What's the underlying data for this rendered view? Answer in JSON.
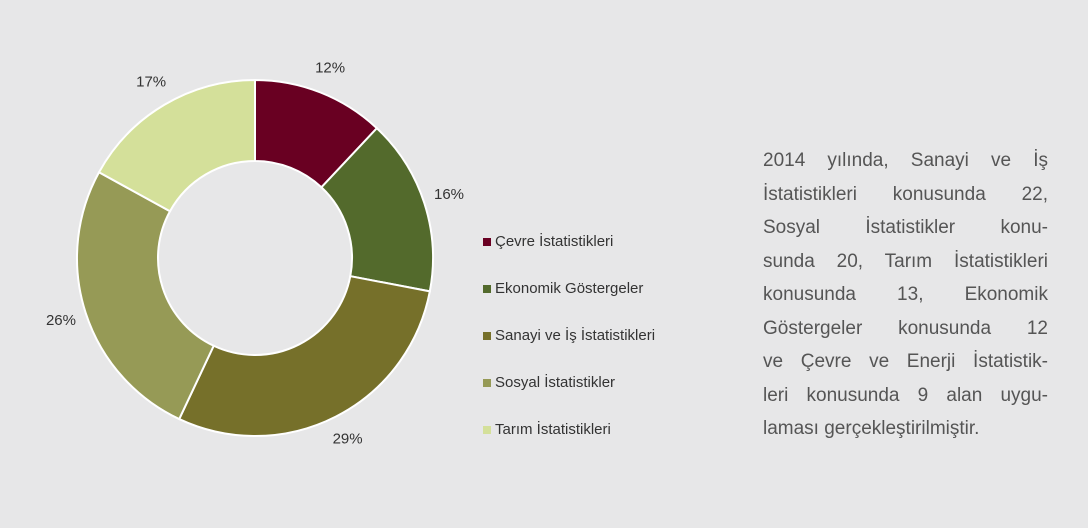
{
  "chart_data": {
    "type": "pie",
    "donut": true,
    "categories": [
      "Çevre İstatistikleri",
      "Ekonomik Göstergeler",
      "Sanayi ve İş İstatistikleri",
      "Sosyal İstatistikler",
      "Tarım İstatistikleri"
    ],
    "values": [
      12,
      16,
      29,
      26,
      17
    ],
    "value_labels": [
      "12%",
      "16%",
      "29%",
      "26%",
      "17%"
    ],
    "colors": [
      "#690022",
      "#536a2c",
      "#76702a",
      "#969a56",
      "#d4e09a"
    ]
  },
  "paragraph": {
    "lines": [
      "2014 yılında, Sanayi ve İş",
      "İstatistikleri konusunda 22,",
      "Sosyal İstatistikler konu-",
      "sunda 20, Tarım İstatistikleri",
      "konusunda 13, Ekonomik",
      "Göstergeler konusunda 12",
      "ve Çevre ve Enerji İstatistik-",
      "leri konusunda 9 alan uygu-",
      "laması gerçekleştirilmiştir."
    ]
  }
}
